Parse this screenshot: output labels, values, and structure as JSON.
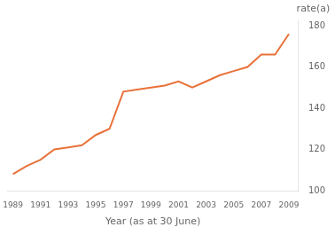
{
  "chart_data": {
    "type": "line",
    "x": [
      1989,
      1990,
      1991,
      1992,
      1993,
      1994,
      1995,
      1996,
      1997,
      1998,
      1999,
      2000,
      2001,
      2002,
      2003,
      2004,
      2005,
      2006,
      2007,
      2008,
      2009
    ],
    "values": [
      108,
      112,
      115,
      120,
      121,
      122,
      127,
      130,
      148,
      149,
      150,
      151,
      153,
      150,
      153,
      156,
      158,
      160,
      166,
      166,
      176
    ],
    "color": "#E8723A",
    "xlabel": "Year (as at 30 June)",
    "ylabel": "rate(a)",
    "xlim": [
      1988.6,
      2009.7
    ],
    "ylim": [
      100,
      183
    ],
    "xticks": [
      1989,
      1991,
      1993,
      1995,
      1997,
      1999,
      2001,
      2003,
      2005,
      2007,
      2009
    ],
    "yticks": [
      100,
      120,
      140,
      160,
      180
    ],
    "grid": false
  }
}
